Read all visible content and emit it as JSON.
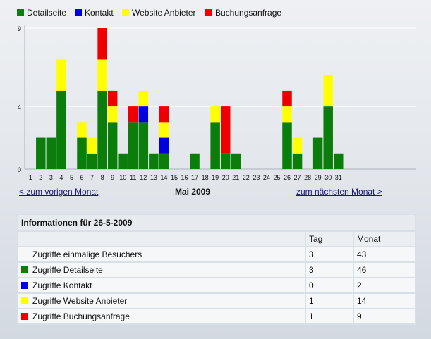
{
  "legend": [
    {
      "label": "Detailseite",
      "color": "#0a7d0a"
    },
    {
      "label": "Kontakt",
      "color": "#0000dd"
    },
    {
      "label": "Website Anbieter",
      "color": "#ffff00"
    },
    {
      "label": "Buchungsanfrage",
      "color": "#ee0000"
    }
  ],
  "chart_data": {
    "type": "bar",
    "stacked": true,
    "categories": [
      "1",
      "2",
      "3",
      "4",
      "5",
      "6",
      "7",
      "8",
      "9",
      "10",
      "11",
      "12",
      "13",
      "14",
      "15",
      "16",
      "17",
      "18",
      "19",
      "20",
      "21",
      "22",
      "23",
      "24",
      "25",
      "26",
      "27",
      "28",
      "29",
      "30",
      "31"
    ],
    "series": [
      {
        "name": "Detailseite",
        "color": "#0a7d0a",
        "values": [
          0,
          2,
          2,
          5,
          0,
          2,
          1,
          5,
          3,
          1,
          3,
          3,
          1,
          1,
          0,
          0,
          1,
          0,
          3,
          1,
          1,
          0,
          0,
          0,
          0,
          3,
          1,
          0,
          2,
          4,
          1
        ]
      },
      {
        "name": "Kontakt",
        "color": "#0000dd",
        "values": [
          0,
          0,
          0,
          0,
          0,
          0,
          0,
          0,
          0,
          0,
          0,
          1,
          0,
          1,
          0,
          0,
          0,
          0,
          0,
          0,
          0,
          0,
          0,
          0,
          0,
          0,
          0,
          0,
          0,
          0,
          0
        ]
      },
      {
        "name": "Website Anbieter",
        "color": "#ffff00",
        "values": [
          0,
          0,
          0,
          2,
          0,
          1,
          1,
          2,
          1,
          0,
          0,
          1,
          0,
          1,
          0,
          0,
          0,
          0,
          1,
          0,
          0,
          0,
          0,
          0,
          0,
          1,
          1,
          0,
          0,
          2,
          0
        ]
      },
      {
        "name": "Buchungsanfrage",
        "color": "#ee0000",
        "values": [
          0,
          0,
          0,
          0,
          0,
          0,
          0,
          2,
          1,
          0,
          1,
          0,
          0,
          1,
          0,
          0,
          0,
          0,
          0,
          3,
          0,
          0,
          0,
          0,
          0,
          1,
          0,
          0,
          0,
          0,
          0
        ]
      }
    ],
    "yticks": [
      "0",
      "4",
      "9"
    ],
    "ylim": [
      0,
      9
    ],
    "grid": true,
    "legend_position": "top-left",
    "title": "",
    "xlabel": "",
    "ylabel": ""
  },
  "nav": {
    "prev": "< zum vorigen Monat",
    "month": "Mai 2009",
    "next": "zum nächsten Monat >"
  },
  "info": {
    "title": "Informationen für 26-5-2009",
    "col_tag": "Tag",
    "col_monat": "Monat",
    "rows": [
      {
        "label": "Zugriffe einmalige Besuchers",
        "tag": "3",
        "monat": "43",
        "color": ""
      },
      {
        "label": "Zugriffe Detailseite",
        "tag": "3",
        "monat": "46",
        "color": "#0a7d0a"
      },
      {
        "label": "Zugriffe Kontakt",
        "tag": "0",
        "monat": "2",
        "color": "#0000dd"
      },
      {
        "label": "Zugriffe Website Anbieter",
        "tag": "1",
        "monat": "14",
        "color": "#ffff00"
      },
      {
        "label": "Zugriffe Buchungsanfrage",
        "tag": "1",
        "monat": "9",
        "color": "#ee0000"
      }
    ]
  }
}
